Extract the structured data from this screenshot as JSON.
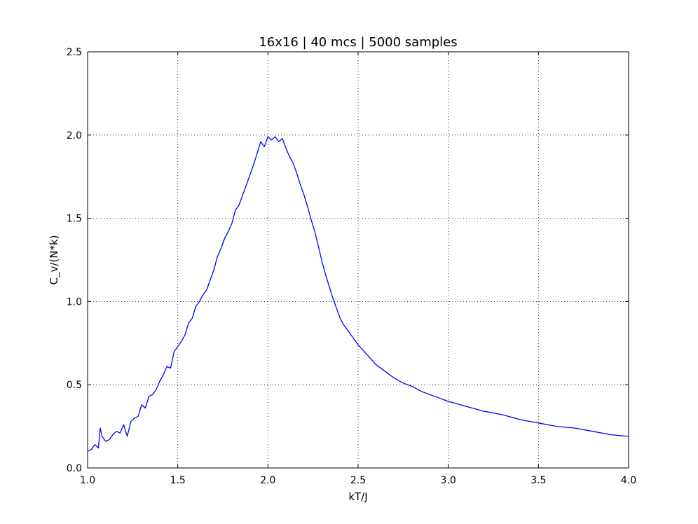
{
  "chart_data": {
    "type": "line",
    "title": "16x16 | 40 mcs | 5000 samples",
    "xlabel": "kT/J",
    "ylabel": "C_v/(N*k)",
    "xlim": [
      1.0,
      4.0
    ],
    "ylim": [
      0.0,
      2.5
    ],
    "xticks": [
      1.0,
      1.5,
      2.0,
      2.5,
      3.0,
      3.5,
      4.0
    ],
    "xtick_labels": [
      "1.0",
      "1.5",
      "2.0",
      "2.5",
      "3.0",
      "3.5",
      "4.0"
    ],
    "yticks": [
      0.0,
      0.5,
      1.0,
      1.5,
      2.0,
      2.5
    ],
    "ytick_labels": [
      "0.0",
      "0.5",
      "1.0",
      "1.5",
      "2.0",
      "2.5"
    ],
    "grid": true,
    "legend": "none",
    "series": [
      {
        "color": "#0000ff",
        "x": [
          1.0,
          1.02,
          1.04,
          1.06,
          1.07,
          1.08,
          1.1,
          1.12,
          1.14,
          1.16,
          1.18,
          1.2,
          1.22,
          1.24,
          1.26,
          1.28,
          1.3,
          1.32,
          1.34,
          1.36,
          1.38,
          1.4,
          1.42,
          1.44,
          1.46,
          1.48,
          1.5,
          1.52,
          1.54,
          1.56,
          1.58,
          1.6,
          1.62,
          1.64,
          1.66,
          1.68,
          1.7,
          1.72,
          1.74,
          1.76,
          1.78,
          1.8,
          1.82,
          1.84,
          1.86,
          1.88,
          1.9,
          1.92,
          1.94,
          1.96,
          1.98,
          2.0,
          2.02,
          2.04,
          2.06,
          2.08,
          2.1,
          2.12,
          2.14,
          2.16,
          2.18,
          2.2,
          2.22,
          2.24,
          2.26,
          2.28,
          2.3,
          2.32,
          2.34,
          2.36,
          2.38,
          2.4,
          2.42,
          2.44,
          2.46,
          2.48,
          2.5,
          2.55,
          2.6,
          2.65,
          2.7,
          2.75,
          2.8,
          2.85,
          2.9,
          2.95,
          3.0,
          3.1,
          3.2,
          3.3,
          3.4,
          3.5,
          3.6,
          3.7,
          3.8,
          3.9,
          4.0
        ],
        "y": [
          0.1,
          0.11,
          0.14,
          0.12,
          0.24,
          0.19,
          0.16,
          0.17,
          0.2,
          0.22,
          0.21,
          0.26,
          0.19,
          0.28,
          0.3,
          0.31,
          0.38,
          0.36,
          0.43,
          0.44,
          0.47,
          0.52,
          0.56,
          0.61,
          0.6,
          0.7,
          0.73,
          0.76,
          0.8,
          0.87,
          0.9,
          0.97,
          1.0,
          1.04,
          1.07,
          1.13,
          1.19,
          1.27,
          1.32,
          1.38,
          1.42,
          1.47,
          1.55,
          1.58,
          1.64,
          1.7,
          1.76,
          1.82,
          1.89,
          1.96,
          1.93,
          1.99,
          1.97,
          1.99,
          1.96,
          1.98,
          1.92,
          1.87,
          1.83,
          1.77,
          1.7,
          1.64,
          1.57,
          1.49,
          1.42,
          1.33,
          1.24,
          1.16,
          1.09,
          1.02,
          0.96,
          0.9,
          0.86,
          0.83,
          0.8,
          0.77,
          0.74,
          0.68,
          0.62,
          0.58,
          0.54,
          0.51,
          0.49,
          0.46,
          0.44,
          0.42,
          0.4,
          0.37,
          0.34,
          0.32,
          0.29,
          0.27,
          0.25,
          0.24,
          0.22,
          0.2,
          0.19
        ]
      }
    ]
  }
}
